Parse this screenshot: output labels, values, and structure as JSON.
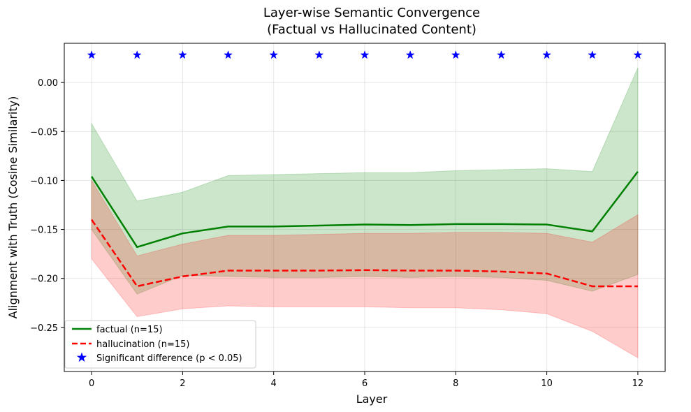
{
  "chart_data": {
    "type": "line",
    "title": "Layer-wise Semantic Convergence",
    "subtitle": "(Factual vs Hallucinated Content)",
    "xlabel": "Layer",
    "ylabel": "Alignment with Truth (Cosine Similarity)",
    "xlim": [
      -0.6,
      12.6
    ],
    "ylim": [
      -0.295,
      0.04
    ],
    "grid": true,
    "x_ticks": [
      0,
      2,
      4,
      6,
      8,
      10,
      12
    ],
    "x_tick_labels": [
      "0",
      "2",
      "4",
      "6",
      "8",
      "10",
      "12"
    ],
    "y_ticks": [
      0.0,
      -0.05,
      -0.1,
      -0.15,
      -0.2,
      -0.25
    ],
    "y_tick_labels": [
      "0.00",
      "−0.05",
      "−0.10",
      "−0.15",
      "−0.20",
      "−0.25"
    ],
    "x": [
      0,
      1,
      2,
      3,
      4,
      5,
      6,
      7,
      8,
      9,
      10,
      11,
      12
    ],
    "series": [
      {
        "name": "factual (n=15)",
        "color": "#008000",
        "style": "solid",
        "values": [
          -0.096,
          -0.168,
          -0.154,
          -0.147,
          -0.147,
          -0.146,
          -0.145,
          -0.1455,
          -0.1445,
          -0.1445,
          -0.145,
          -0.152,
          -0.091
        ],
        "band_upper": [
          -0.042,
          -0.121,
          -0.112,
          -0.095,
          -0.094,
          -0.093,
          -0.092,
          -0.092,
          -0.09,
          -0.089,
          -0.088,
          -0.091,
          0.015
        ],
        "band_lower": [
          -0.15,
          -0.216,
          -0.197,
          -0.198,
          -0.199,
          -0.199,
          -0.198,
          -0.199,
          -0.198,
          -0.199,
          -0.202,
          -0.213,
          -0.196
        ],
        "band_color": "#008000"
      },
      {
        "name": "hallucination (n=15)",
        "color": "#ff0000",
        "style": "dashed",
        "values": [
          -0.14,
          -0.208,
          -0.198,
          -0.192,
          -0.192,
          -0.192,
          -0.1915,
          -0.192,
          -0.192,
          -0.193,
          -0.195,
          -0.208,
          -0.208
        ],
        "band_upper": [
          -0.1,
          -0.177,
          -0.165,
          -0.156,
          -0.156,
          -0.155,
          -0.154,
          -0.154,
          -0.153,
          -0.153,
          -0.154,
          -0.163,
          -0.135
        ],
        "band_lower": [
          -0.18,
          -0.239,
          -0.231,
          -0.228,
          -0.229,
          -0.229,
          -0.229,
          -0.23,
          -0.23,
          -0.232,
          -0.236,
          -0.254,
          -0.281
        ],
        "band_color": "#ff0000"
      }
    ],
    "significance": {
      "name": "Significant difference (p < 0.05)",
      "color": "#0000ff",
      "marker": "star",
      "x": [
        0,
        1,
        2,
        3,
        4,
        5,
        6,
        7,
        8,
        9,
        10,
        11,
        12
      ],
      "y": 0.028
    },
    "legend_position": "lower-left"
  }
}
